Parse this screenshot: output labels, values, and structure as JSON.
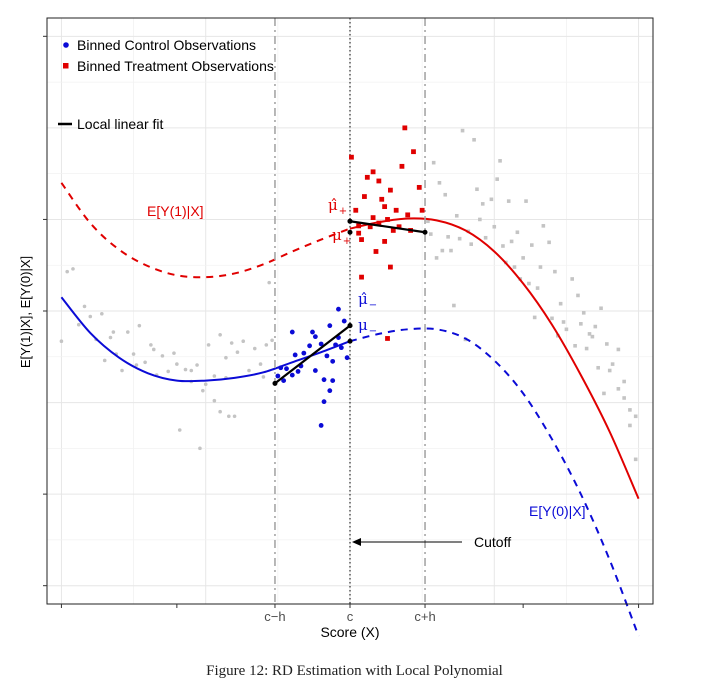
{
  "chart_data": {
    "type": "scatter",
    "xlabel": "Score (X)",
    "ylabel": "E[Y(1)|X], E[Y(0)|X]",
    "xlim": [
      -1.05,
      1.05
    ],
    "ylim": [
      -2.0,
      4.4
    ],
    "grid": true,
    "legend_position": "top-left",
    "x_tick_labels": [
      {
        "x": -0.26,
        "label": "c−h"
      },
      {
        "x": 0.0,
        "label": "c"
      },
      {
        "x": 0.26,
        "label": "c+h"
      }
    ],
    "legend": [
      {
        "label": "Binned Control Observations",
        "color": "#0b0bd6",
        "marker": "circle"
      },
      {
        "label": "Binned Treatment Observations",
        "color": "#e00000",
        "marker": "square"
      },
      {
        "label": "Local linear fit",
        "color": "#000000",
        "marker": "line"
      }
    ],
    "curve_labels": {
      "treated": "E[Y(1)|X]",
      "control": "E[Y(0)|X]"
    },
    "estimate_labels": {
      "mu_plus_hat": "μ̂",
      "mu_plus": "μ",
      "mu_minus_hat": "μ̂",
      "mu_minus": "μ",
      "sub_plus": "+",
      "sub_minus": "−"
    },
    "cutoff_label": "Cutoff",
    "colors": {
      "treated": "#e00000",
      "control": "#0b0bd6",
      "grey": "#bfbfbf",
      "fit": "#000000"
    },
    "curves": {
      "treated_Y1": {
        "style": "dashed-left-solid-right",
        "x": [
          -1.0,
          -0.9,
          -0.8,
          -0.7,
          -0.6,
          -0.5,
          -0.4,
          -0.3,
          -0.2,
          -0.1,
          0.0,
          0.1,
          0.2,
          0.3,
          0.4,
          0.5,
          0.6,
          0.7,
          0.8,
          0.9,
          1.0
        ],
        "y": [
          2.6,
          2.16,
          1.87,
          1.69,
          1.59,
          1.57,
          1.61,
          1.71,
          1.85,
          1.98,
          2.1,
          2.17,
          2.21,
          2.19,
          2.08,
          1.85,
          1.5,
          1.05,
          0.5,
          -0.12,
          -0.85
        ]
      },
      "control_Y0": {
        "style": "solid-left-dashed-right",
        "x": [
          -1.0,
          -0.9,
          -0.8,
          -0.7,
          -0.6,
          -0.5,
          -0.4,
          -0.3,
          -0.2,
          -0.1,
          0.0,
          0.1,
          0.2,
          0.3,
          0.4,
          0.5,
          0.6,
          0.7,
          0.8,
          0.9,
          1.0
        ],
        "y": [
          1.35,
          0.96,
          0.69,
          0.52,
          0.44,
          0.44,
          0.47,
          0.53,
          0.64,
          0.75,
          0.87,
          0.95,
          1.0,
          1.0,
          0.9,
          0.66,
          0.3,
          -0.2,
          -0.8,
          -1.52,
          -2.35
        ]
      }
    },
    "local_linear_fits": [
      {
        "side": "left",
        "x": [
          -0.26,
          0.0
        ],
        "y": [
          0.41,
          1.04
        ]
      },
      {
        "side": "right",
        "x": [
          0.0,
          0.26
        ],
        "y": [
          2.18,
          2.06
        ]
      }
    ],
    "estimates": {
      "mu_plus_hat": [
        0.0,
        2.18
      ],
      "mu_plus": [
        0.0,
        2.06
      ],
      "mu_minus_hat": [
        0.0,
        1.04
      ],
      "mu_minus": [
        0.0,
        0.87
      ]
    },
    "series": [
      {
        "name": "Binned Control Observations",
        "marker": "circle",
        "color": "#0b0bd6",
        "points": [
          [
            -0.25,
            0.49
          ],
          [
            -0.23,
            0.44
          ],
          [
            -0.22,
            0.57
          ],
          [
            -0.2,
            0.5
          ],
          [
            -0.19,
            0.72
          ],
          [
            -0.17,
            0.6
          ],
          [
            -0.16,
            0.74
          ],
          [
            -0.14,
            0.82
          ],
          [
            -0.13,
            0.97
          ],
          [
            -0.12,
            0.55
          ],
          [
            -0.1,
            0.84
          ],
          [
            -0.09,
            0.45
          ],
          [
            -0.08,
            0.71
          ],
          [
            -0.07,
            1.04
          ],
          [
            -0.06,
            0.65
          ],
          [
            -0.05,
            0.83
          ],
          [
            -0.04,
            1.22
          ],
          [
            -0.03,
            0.8
          ],
          [
            -0.02,
            1.09
          ],
          [
            -0.01,
            0.69
          ],
          [
            -0.09,
            0.21
          ],
          [
            -0.07,
            0.33
          ],
          [
            -0.1,
            -0.05
          ],
          [
            -0.2,
            0.97
          ],
          [
            -0.24,
            0.58
          ],
          [
            -0.04,
            0.91
          ],
          [
            -0.06,
            0.44
          ],
          [
            -0.12,
            0.92
          ],
          [
            -0.18,
            0.54
          ]
        ]
      },
      {
        "name": "Binned Treatment Observations",
        "marker": "square",
        "color": "#e00000",
        "points": [
          [
            0.005,
            2.88
          ],
          [
            0.02,
            2.3
          ],
          [
            0.03,
            2.05
          ],
          [
            0.04,
            1.98
          ],
          [
            0.05,
            2.45
          ],
          [
            0.06,
            2.66
          ],
          [
            0.07,
            2.12
          ],
          [
            0.08,
            2.22
          ],
          [
            0.09,
            1.85
          ],
          [
            0.1,
            2.62
          ],
          [
            0.11,
            2.42
          ],
          [
            0.12,
            1.96
          ],
          [
            0.13,
            2.2
          ],
          [
            0.14,
            2.52
          ],
          [
            0.15,
            2.08
          ],
          [
            0.16,
            2.3
          ],
          [
            0.17,
            2.12
          ],
          [
            0.18,
            2.78
          ],
          [
            0.19,
            3.2
          ],
          [
            0.2,
            2.25
          ],
          [
            0.21,
            2.08
          ],
          [
            0.22,
            2.94
          ],
          [
            0.24,
            2.55
          ],
          [
            0.25,
            2.3
          ],
          [
            0.04,
            1.57
          ],
          [
            0.08,
            2.72
          ],
          [
            0.12,
            2.34
          ],
          [
            0.14,
            1.68
          ],
          [
            0.03,
            2.13
          ],
          [
            0.1,
            2.16
          ],
          [
            0.13,
            0.9
          ]
        ]
      },
      {
        "name": "grey-control-outside",
        "marker": "circle",
        "color": "#c4c4c4",
        "points": [
          [
            -1.0,
            0.87
          ],
          [
            -0.98,
            1.63
          ],
          [
            -0.96,
            1.66
          ],
          [
            -0.94,
            1.05
          ],
          [
            -0.92,
            1.25
          ],
          [
            -0.9,
            1.14
          ],
          [
            -0.88,
            0.89
          ],
          [
            -0.86,
            1.17
          ],
          [
            -0.85,
            0.66
          ],
          [
            -0.83,
            0.91
          ],
          [
            -0.81,
            0.73
          ],
          [
            -0.79,
            0.55
          ],
          [
            -0.77,
            0.97
          ],
          [
            -0.75,
            0.73
          ],
          [
            -0.73,
            1.04
          ],
          [
            -0.71,
            0.64
          ],
          [
            -0.69,
            0.83
          ],
          [
            -0.67,
            0.5
          ],
          [
            -0.65,
            0.71
          ],
          [
            -0.63,
            0.54
          ],
          [
            -0.61,
            0.74
          ],
          [
            -0.59,
            -0.1
          ],
          [
            -0.57,
            0.56
          ],
          [
            -0.55,
            0.43
          ],
          [
            -0.53,
            0.61
          ],
          [
            -0.51,
            0.33
          ],
          [
            -0.49,
            0.83
          ],
          [
            -0.47,
            0.49
          ],
          [
            -0.45,
            0.94
          ],
          [
            -0.43,
            0.69
          ],
          [
            -0.41,
            0.85
          ],
          [
            -0.39,
            0.75
          ],
          [
            -0.37,
            0.87
          ],
          [
            -0.35,
            0.55
          ],
          [
            -0.33,
            0.79
          ],
          [
            -0.31,
            0.62
          ],
          [
            -0.29,
            0.83
          ],
          [
            -0.27,
            0.88
          ],
          [
            -0.45,
            0.1
          ],
          [
            -0.43,
            0.47
          ],
          [
            -0.5,
            0.4
          ],
          [
            -0.55,
            0.55
          ],
          [
            -0.6,
            0.62
          ],
          [
            -0.68,
            0.78
          ],
          [
            -0.74,
            0.61
          ],
          [
            -0.82,
            0.97
          ],
          [
            -0.52,
            -0.3
          ],
          [
            -0.47,
            0.22
          ],
          [
            -0.42,
            0.05
          ],
          [
            -0.4,
            0.05
          ],
          [
            -0.3,
            0.48
          ],
          [
            -0.28,
            1.51
          ]
        ]
      },
      {
        "name": "grey-treatment-outside",
        "marker": "square",
        "color": "#c4c4c4",
        "points": [
          [
            0.27,
            2.18
          ],
          [
            0.29,
            2.82
          ],
          [
            0.31,
            2.6
          ],
          [
            0.33,
            2.47
          ],
          [
            0.35,
            1.86
          ],
          [
            0.37,
            2.24
          ],
          [
            0.39,
            3.17
          ],
          [
            0.41,
            2.07
          ],
          [
            0.43,
            3.07
          ],
          [
            0.45,
            2.2
          ],
          [
            0.47,
            2.0
          ],
          [
            0.49,
            2.42
          ],
          [
            0.51,
            2.64
          ],
          [
            0.52,
            2.84
          ],
          [
            0.53,
            1.91
          ],
          [
            0.55,
            2.4
          ],
          [
            0.57,
            1.68
          ],
          [
            0.59,
            1.55
          ],
          [
            0.61,
            2.4
          ],
          [
            0.63,
            1.92
          ],
          [
            0.65,
            1.45
          ],
          [
            0.67,
            2.13
          ],
          [
            0.69,
            1.95
          ],
          [
            0.71,
            1.63
          ],
          [
            0.73,
            1.28
          ],
          [
            0.75,
            1.0
          ],
          [
            0.77,
            1.55
          ],
          [
            0.79,
            1.37
          ],
          [
            0.81,
            1.18
          ],
          [
            0.83,
            0.95
          ],
          [
            0.85,
            1.03
          ],
          [
            0.87,
            1.23
          ],
          [
            0.89,
            0.84
          ],
          [
            0.91,
            0.62
          ],
          [
            0.93,
            0.78
          ],
          [
            0.95,
            0.43
          ],
          [
            0.97,
            0.12
          ],
          [
            0.99,
            0.05
          ],
          [
            0.99,
            -0.42
          ],
          [
            0.97,
            -0.05
          ],
          [
            0.95,
            0.25
          ],
          [
            0.93,
            0.35
          ],
          [
            0.9,
            0.55
          ],
          [
            0.88,
            0.3
          ],
          [
            0.86,
            0.58
          ],
          [
            0.84,
            0.92
          ],
          [
            0.82,
            0.79
          ],
          [
            0.8,
            1.06
          ],
          [
            0.78,
            0.82
          ],
          [
            0.74,
            1.08
          ],
          [
            0.72,
            0.93
          ],
          [
            0.7,
            1.12
          ],
          [
            0.66,
            1.68
          ],
          [
            0.62,
            1.5
          ],
          [
            0.6,
            1.78
          ],
          [
            0.58,
            2.06
          ],
          [
            0.56,
            1.96
          ],
          [
            0.54,
            1.73
          ],
          [
            0.5,
            2.12
          ],
          [
            0.46,
            2.37
          ],
          [
            0.44,
            2.53
          ],
          [
            0.42,
            1.93
          ],
          [
            0.38,
            1.99
          ],
          [
            0.36,
            1.26
          ],
          [
            0.34,
            2.01
          ],
          [
            0.32,
            1.86
          ],
          [
            0.3,
            1.78
          ],
          [
            0.28,
            2.04
          ],
          [
            0.4,
            0.89
          ],
          [
            0.64,
            1.13
          ]
        ]
      }
    ]
  },
  "caption": "Figure 12: RD Estimation with Local Polynomial"
}
